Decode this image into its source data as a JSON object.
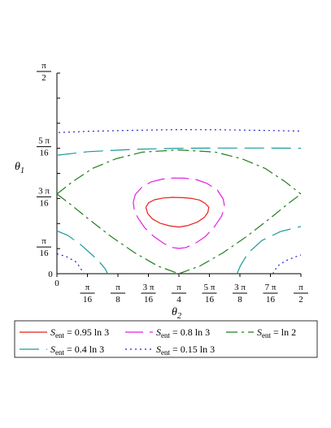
{
  "chart_data": {
    "type": "line",
    "xlabel": {
      "main": "θ",
      "sub": "2"
    },
    "ylabel": {
      "main": "θ",
      "sub": "1"
    },
    "xlim": [
      0,
      1.5708
    ],
    "ylim": [
      0,
      1.5708
    ],
    "x_ticks": [
      {
        "value": 0,
        "plain": "0"
      },
      {
        "value": 0.19635,
        "num": "π",
        "den": "16"
      },
      {
        "value": 0.3927,
        "num": "π",
        "den": "8"
      },
      {
        "value": 0.58905,
        "num": "3 π",
        "den": "16"
      },
      {
        "value": 0.7854,
        "num": "π",
        "den": "4"
      },
      {
        "value": 0.98175,
        "num": "5 π",
        "den": "16"
      },
      {
        "value": 1.1781,
        "num": "3 π",
        "den": "8"
      },
      {
        "value": 1.37445,
        "num": "7 π",
        "den": "16"
      },
      {
        "value": 1.5708,
        "num": "π",
        "den": "2"
      }
    ],
    "y_ticks": [
      {
        "value": 0,
        "plain": "0"
      },
      {
        "value": 0.19635,
        "num": "π",
        "den": "16"
      },
      {
        "value": 0.58905,
        "num": "3 π",
        "den": "16"
      },
      {
        "value": 0.98175,
        "num": "5 π",
        "den": "16"
      },
      {
        "value": 1.5708,
        "num": "π",
        "den": "2"
      }
    ],
    "y_minor_ticks": [
      0.3927,
      0.7854,
      1.1781,
      1.37445
    ],
    "series": [
      {
        "name": "0.95 ln 3",
        "color": "#e8201c",
        "dash": "none",
        "paths": [
          [
            [
              0.573,
              0.52
            ],
            [
              0.59,
              0.555
            ],
            [
              0.628,
              0.579
            ],
            [
              0.685,
              0.593
            ],
            [
              0.745,
              0.598
            ],
            [
              0.81,
              0.595
            ],
            [
              0.87,
              0.589
            ],
            [
              0.918,
              0.577
            ],
            [
              0.955,
              0.55
            ],
            [
              0.978,
              0.52
            ],
            [
              0.972,
              0.48
            ],
            [
              0.948,
              0.44
            ],
            [
              0.906,
              0.405
            ],
            [
              0.845,
              0.378
            ],
            [
              0.785,
              0.365
            ],
            [
              0.724,
              0.375
            ],
            [
              0.665,
              0.395
            ],
            [
              0.615,
              0.428
            ],
            [
              0.585,
              0.47
            ],
            [
              0.573,
              0.52
            ]
          ]
        ]
      },
      {
        "name": "0.8 ln 3",
        "color": "#e31ee3",
        "dash": "22 8",
        "paths": [
          [
            [
              0.491,
              0.56
            ],
            [
              0.505,
              0.62
            ],
            [
              0.545,
              0.675
            ],
            [
              0.605,
              0.718
            ],
            [
              0.68,
              0.741
            ],
            [
              0.75,
              0.749
            ],
            [
              0.82,
              0.748
            ],
            [
              0.895,
              0.738
            ],
            [
              0.965,
              0.708
            ],
            [
              1.033,
              0.655
            ],
            [
              1.07,
              0.585
            ],
            [
              1.08,
              0.52
            ],
            [
              1.06,
              0.45
            ],
            [
              1.015,
              0.37
            ],
            [
              0.955,
              0.29
            ],
            [
              0.888,
              0.235
            ],
            [
              0.83,
              0.205
            ],
            [
              0.787,
              0.198
            ],
            [
              0.745,
              0.205
            ],
            [
              0.69,
              0.235
            ],
            [
              0.625,
              0.29
            ],
            [
              0.565,
              0.36
            ],
            [
              0.52,
              0.44
            ],
            [
              0.498,
              0.5
            ],
            [
              0.491,
              0.56
            ]
          ]
        ]
      },
      {
        "name": "ln 2",
        "color": "#1f7f1f",
        "dash": "14 5 3 5",
        "paths": [
          [
            [
              0,
              0.624
            ],
            [
              0.08,
              0.55
            ],
            [
              0.2,
              0.432
            ],
            [
              0.35,
              0.29
            ],
            [
              0.5,
              0.165
            ],
            [
              0.65,
              0.06
            ],
            [
              0.785,
              0
            ]
          ],
          [
            [
              0.785,
              0
            ],
            [
              0.92,
              0.06
            ],
            [
              1.07,
              0.165
            ],
            [
              1.22,
              0.29
            ],
            [
              1.37,
              0.432
            ],
            [
              1.49,
              0.55
            ],
            [
              1.5708,
              0.624
            ]
          ],
          [
            [
              0,
              0.624
            ],
            [
              0.1,
              0.72
            ],
            [
              0.23,
              0.825
            ],
            [
              0.38,
              0.9
            ],
            [
              0.55,
              0.952
            ],
            [
              0.785,
              0.969
            ],
            [
              1.02,
              0.952
            ],
            [
              1.19,
              0.9
            ],
            [
              1.34,
              0.825
            ],
            [
              1.47,
              0.72
            ],
            [
              1.5708,
              0.624
            ]
          ]
        ]
      },
      {
        "name": "0.4 ln 3",
        "color": "#1a9a9a",
        "dash": "24 9",
        "paths": [
          [
            [
              0,
              0.335
            ],
            [
              0.07,
              0.3
            ],
            [
              0.16,
              0.22
            ],
            [
              0.26,
              0.11
            ],
            [
              0.31,
              0.04
            ],
            [
              0.326,
              0
            ]
          ],
          [
            [
              1.16,
              0
            ],
            [
              1.18,
              0.06
            ],
            [
              1.23,
              0.16
            ],
            [
              1.32,
              0.26
            ],
            [
              1.44,
              0.33
            ],
            [
              1.5708,
              0.37
            ]
          ],
          [
            [
              0,
              0.928
            ],
            [
              0.2,
              0.955
            ],
            [
              0.5,
              0.974
            ],
            [
              0.785,
              0.982
            ],
            [
              1.07,
              0.984
            ],
            [
              1.35,
              0.984
            ],
            [
              1.5708,
              0.982
            ]
          ]
        ]
      },
      {
        "name": "0.15 ln 3",
        "color": "#2020d0",
        "dash": "2 4",
        "paths": [
          [
            [
              0,
              0.156
            ],
            [
              0.06,
              0.134
            ],
            [
              0.12,
              0.094
            ],
            [
              0.15,
              0.05
            ],
            [
              0.17,
              0
            ]
          ],
          [
            [
              1.39,
              0
            ],
            [
              1.42,
              0.06
            ],
            [
              1.47,
              0.1
            ],
            [
              1.53,
              0.13
            ],
            [
              1.5708,
              0.147
            ]
          ],
          [
            [
              0.01,
              1.105
            ],
            [
              0.2,
              1.115
            ],
            [
              0.5,
              1.123
            ],
            [
              0.785,
              1.128
            ],
            [
              1.07,
              1.127
            ],
            [
              1.37,
              1.121
            ],
            [
              1.56,
              1.117
            ]
          ]
        ]
      }
    ],
    "legend": {
      "placement": "bottom",
      "prefix": "S",
      "subscript": "ent",
      "entries": [
        "0.95 ln 3",
        "0.8 ln 3",
        "ln 2",
        "0.4 ln 3",
        "0.15 ln 3"
      ]
    }
  }
}
